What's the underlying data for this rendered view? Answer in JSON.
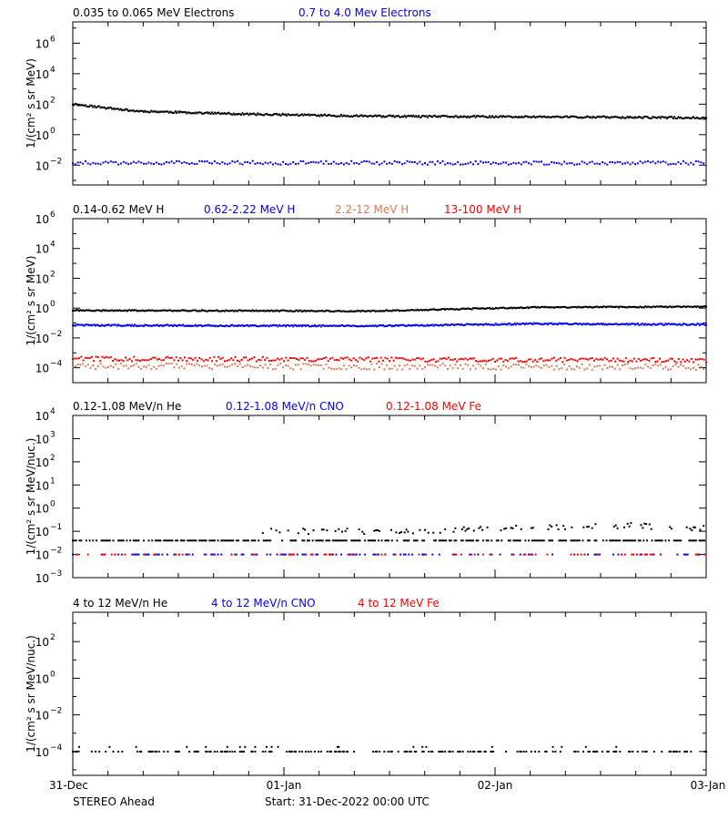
{
  "footer": {
    "spacecraft": "STEREO Ahead",
    "start": "Start: 31-Dec-2022 00:00 UTC"
  },
  "x_axis": {
    "ticks": [
      {
        "label": "31-Dec",
        "day": 0
      },
      {
        "label": "01-Jan",
        "day": 1
      },
      {
        "label": "02-Jan",
        "day": 2
      },
      {
        "label": "03-Jan",
        "day": 3
      }
    ],
    "minor_ticks_per_day": 6
  },
  "chart_data": [
    {
      "type": "scatter",
      "id": "electrons",
      "ylabel": "1/(cm² s sr MeV)",
      "y_scale": "log",
      "ylim_exp": [
        -3.3,
        7.4
      ],
      "y_tick_exps": [
        -2,
        0,
        2,
        4,
        6
      ],
      "xlim_days": [
        0,
        3
      ],
      "legend": [
        {
          "label": "0.035 to 0.065 MeV Electrons",
          "color": "#000000"
        },
        {
          "label": "0.7 to 4.0 Mev Electrons",
          "color": "#0000ff"
        }
      ],
      "series": [
        {
          "color": "#000000",
          "profile_exp": [
            [
              0,
              2.0
            ],
            [
              0.3,
              1.55
            ],
            [
              0.8,
              1.35
            ],
            [
              1.5,
              1.2
            ],
            [
              2.5,
              1.15
            ],
            [
              3.0,
              1.1
            ]
          ],
          "scatter_exp": 0.06,
          "step_days": 0.006,
          "seed": 11
        },
        {
          "color": "#0000ff",
          "profile_exp": [
            [
              0,
              -1.85
            ],
            [
              3.0,
              -1.85
            ]
          ],
          "scatter_exp": 0.12,
          "step_days": 0.012,
          "seed": 12
        }
      ]
    },
    {
      "type": "scatter",
      "id": "protons",
      "ylabel": "1/(cm² s sr MeV)",
      "y_scale": "log",
      "ylim_exp": [
        -5.0,
        6.0
      ],
      "y_tick_exps": [
        -4,
        -2,
        0,
        2,
        4,
        6
      ],
      "xlim_days": [
        0,
        3
      ],
      "legend": [
        {
          "label": "0.14-0.62 MeV H",
          "color": "#000000"
        },
        {
          "label": "0.62-2.22 MeV H",
          "color": "#0000ff"
        },
        {
          "label": "2.2-12 MeV H",
          "color": "#e07a5a"
        },
        {
          "label": "13-100 MeV H",
          "color": "#ff0000"
        }
      ],
      "series": [
        {
          "color": "#000000",
          "profile_exp": [
            [
              0,
              -0.15
            ],
            [
              1.4,
              -0.2
            ],
            [
              2.2,
              0.05
            ],
            [
              3.0,
              0.1
            ]
          ],
          "scatter_exp": 0.04,
          "step_days": 0.006,
          "seed": 21
        },
        {
          "color": "#0000ff",
          "profile_exp": [
            [
              0,
              -1.15
            ],
            [
              1.4,
              -1.2
            ],
            [
              2.2,
              -1.05
            ],
            [
              3.0,
              -1.1
            ]
          ],
          "scatter_exp": 0.05,
          "step_days": 0.006,
          "seed": 22
        },
        {
          "color": "#e07a5a",
          "profile_exp": [
            [
              0,
              -3.9
            ],
            [
              3.0,
              -3.95
            ]
          ],
          "scatter_exp": 0.2,
          "step_days": 0.012,
          "seed": 23
        },
        {
          "color": "#ff0000",
          "profile_exp": [
            [
              0,
              -3.4
            ],
            [
              3.0,
              -3.5
            ]
          ],
          "scatter_exp": 0.15,
          "step_days": 0.01,
          "seed": 24
        }
      ]
    },
    {
      "type": "scatter",
      "id": "he_low",
      "ylabel": "1/(cm² s sr MeV/nuc.)",
      "y_scale": "log",
      "ylim_exp": [
        -3.0,
        4.0
      ],
      "y_tick_exps": [
        -3,
        -2,
        -1,
        0,
        1,
        2,
        3,
        4
      ],
      "xlim_days": [
        0,
        3
      ],
      "legend": [
        {
          "label": "0.12-1.08 MeV/n He",
          "color": "#000000"
        },
        {
          "label": "0.12-1.08 MeV/n CNO",
          "color": "#0000ff"
        },
        {
          "label": "0.12-1.08 MeV Fe",
          "color": "#ff0000"
        }
      ],
      "series": [
        {
          "color": "#000000",
          "profile_exp": [
            [
              0,
              -1.4
            ],
            [
              3.0,
              -1.4
            ]
          ],
          "scatter_exp": 0.0,
          "step_days": 0.008,
          "seed": 31,
          "keep": 0.6
        },
        {
          "color": "#000000",
          "profile_exp": [
            [
              0,
              -1.0
            ],
            [
              1.6,
              -1.0
            ],
            [
              2.0,
              -0.85
            ],
            [
              2.6,
              -0.75
            ],
            [
              3.0,
              -0.85
            ]
          ],
          "scatter_exp": 0.12,
          "step_days": 0.008,
          "seed": 32,
          "keep": 0.35,
          "start_day": 0.9
        },
        {
          "color": "#0000ff",
          "profile_exp": [
            [
              0,
              -2.0
            ],
            [
              3.0,
              -2.0
            ]
          ],
          "scatter_exp": 0.0,
          "step_days": 0.008,
          "seed": 33,
          "keep": 0.28
        },
        {
          "color": "#ff0000",
          "profile_exp": [
            [
              0,
              -2.0
            ],
            [
              3.0,
              -2.0
            ]
          ],
          "scatter_exp": 0.0,
          "step_days": 0.008,
          "seed": 34,
          "keep": 0.22
        }
      ]
    },
    {
      "type": "scatter",
      "id": "he_high",
      "ylabel": "1/(cm² s sr MeV/nuc.)",
      "y_scale": "log",
      "ylim_exp": [
        -5.3,
        3.6
      ],
      "y_tick_exps": [
        -4,
        -2,
        0,
        2
      ],
      "xlim_days": [
        0,
        3
      ],
      "legend": [
        {
          "label": "4 to 12 MeV/n He",
          "color": "#000000"
        },
        {
          "label": "4 to 12 MeV/n CNO",
          "color": "#0000ff"
        },
        {
          "label": "4 to 12 MeV Fe",
          "color": "#ff0000"
        }
      ],
      "series": [
        {
          "color": "#000000",
          "profile_exp": [
            [
              0,
              -4.0
            ],
            [
              3.0,
              -4.0
            ]
          ],
          "scatter_exp": 0.0,
          "step_days": 0.006,
          "seed": 41,
          "keep": 0.35
        },
        {
          "color": "#000000",
          "profile_exp": [
            [
              0,
              -3.75
            ],
            [
              3.0,
              -3.75
            ]
          ],
          "scatter_exp": 0.0,
          "step_days": 0.006,
          "seed": 42,
          "keep": 0.06
        }
      ]
    }
  ]
}
